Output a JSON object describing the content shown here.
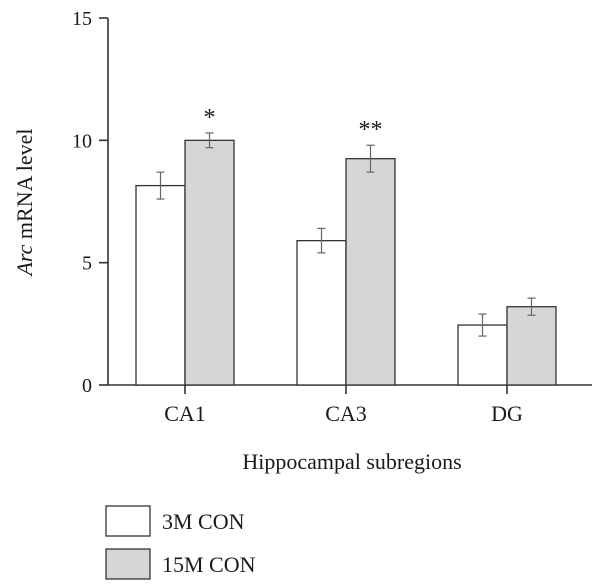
{
  "chart_data": {
    "type": "bar",
    "categories": [
      "CA1",
      "CA3",
      "DG"
    ],
    "series": [
      {
        "name": "3M CON",
        "color": "#ffffff",
        "values": [
          8.15,
          5.9,
          2.45
        ],
        "errors": [
          0.55,
          0.5,
          0.45
        ],
        "annotations": [
          "",
          "",
          ""
        ]
      },
      {
        "name": "15M CON",
        "color": "#d6d6d6",
        "values": [
          10.0,
          9.25,
          3.2
        ],
        "errors": [
          0.3,
          0.55,
          0.35
        ],
        "annotations": [
          "*",
          "**",
          ""
        ]
      }
    ],
    "ylim": [
      0,
      15
    ],
    "yticks": [
      "0",
      "5",
      "10",
      "15"
    ],
    "ylabel_italic": "Arc",
    "ylabel_rest": " mRNA level",
    "xlabel": "Hippocampal subregions",
    "title": "",
    "legend_position": "bottom-left"
  }
}
